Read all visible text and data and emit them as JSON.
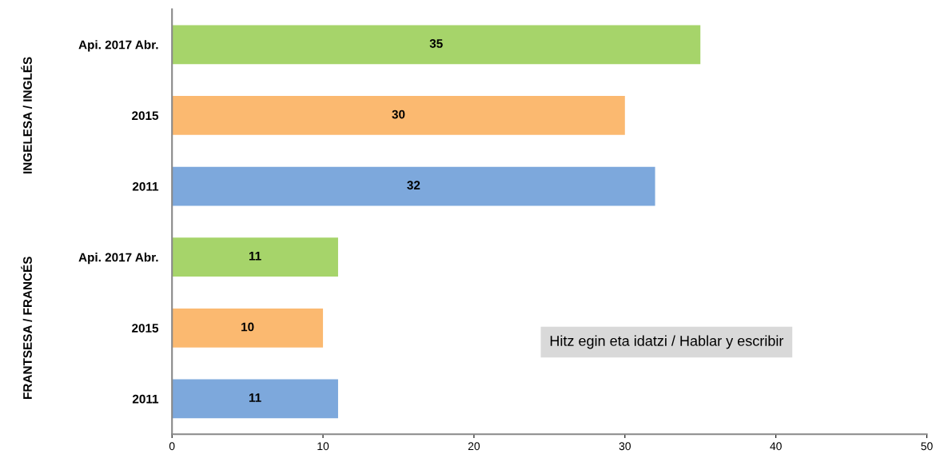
{
  "chart_data": {
    "type": "bar",
    "orientation": "horizontal",
    "categories": [
      "Api. 2017 Abr.",
      "2015",
      "2011",
      "Api. 2017 Abr.",
      "2015",
      "2011"
    ],
    "values": [
      35,
      30,
      32,
      11,
      10,
      11
    ],
    "colors": [
      "#a6d46a",
      "#fbb970",
      "#7da8dc",
      "#a6d46a",
      "#fbb970",
      "#7da8dc"
    ],
    "xlim": [
      0,
      50
    ],
    "xticks": [
      0,
      10,
      20,
      30,
      40,
      50
    ],
    "data_labels": true,
    "grid": false,
    "legend": false,
    "annotations": [
      "INGELESA / INGLÉS",
      "FRANTSESA / FRANCÉS",
      "Hitz egin eta idatzi / Hablar y escribir"
    ]
  }
}
